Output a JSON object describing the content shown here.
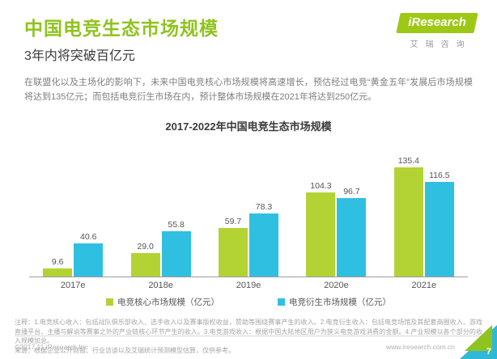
{
  "header": {
    "title": "中国电竞生态市场规模",
    "subtitle": "3年内将突破百亿元",
    "logo": {
      "brand": "iResearch",
      "brand_cn": "艾瑞咨询"
    }
  },
  "intro": "在联盟化以及主场化的影响下，未来中国电竞核心市场规模将高速增长，预估经过电竞“黄金五年”发展后市场规模将达到135亿元；而包括电竞衍生市场在内，预计整体市场规模在2021年将达到250亿元。",
  "chart_data": {
    "type": "bar",
    "title": "2017-2022年中国电竞生态市场规模",
    "categories": [
      "2017e",
      "2018e",
      "2019e",
      "2020e",
      "2021e"
    ],
    "series": [
      {
        "name": "电竞核心市场规模（亿元）",
        "color": "#b3d335",
        "values": [
          9.6,
          29.0,
          59.7,
          104.3,
          135.4
        ],
        "labels": [
          "9.6",
          "29.0",
          "59.7",
          "104.3",
          "135.4"
        ]
      },
      {
        "name": "电竞衍生市场规模（亿元）",
        "color": "#2fc0e1",
        "values": [
          40.6,
          55.8,
          78.3,
          96.7,
          116.5
        ],
        "labels": [
          "40.6",
          "55.8",
          "78.3",
          "96.7",
          "116.5"
        ]
      }
    ],
    "ylim": [
      0,
      150
    ],
    "grid": false,
    "legend_position": "bottom"
  },
  "footnote": {
    "notes_line": "注释：1.电竞核心收入：包括战队俱乐部收入、选手收入以及赛事版权收益，赞助等围绕赛事产生的收入。2.电竞衍生收入：包括电竞场馆及其配套商圈收入、游戏直播平台、主播与解说等赛事之外的产业链核心环节产生的收入。3.电竞游戏收入：根据中国大陆地区用户为狭义电竞游戏消费的金额。4.产业规模以各个部分的收入规模加总。",
    "source_line": "来源：根据企业公开财报、行业访谈以及艾瑞统计预测模型估算，仅供参考。"
  },
  "footer": {
    "copyright": "©2017.11 iResearch Inc",
    "website": "www.iresearch.com.cn",
    "page_number": "7"
  }
}
